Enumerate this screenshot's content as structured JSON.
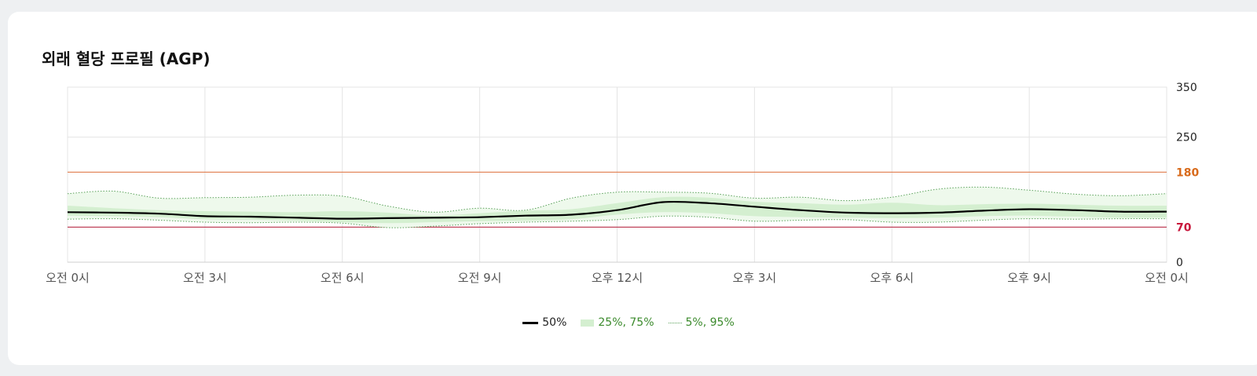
{
  "chart_data": {
    "type": "area",
    "title": "외래 혈당 프로필 (AGP)",
    "x_tick_labels": [
      "오전 0시",
      "오전 3시",
      "오전 6시",
      "오전 9시",
      "오후 12시",
      "오후 3시",
      "오후 6시",
      "오후 9시",
      "오전 0시"
    ],
    "x_range": [
      0,
      24
    ],
    "y_ticks": [
      0,
      70,
      180,
      250,
      350
    ],
    "y_range": [
      0,
      350
    ],
    "y_axis_position": "right",
    "grid": true,
    "legend_position": "bottom-center",
    "target_range": {
      "low": 70,
      "high": 180,
      "low_color": "#c0435a",
      "high_color": "#e07a4a",
      "low_label_color": "#c8173c",
      "high_label_color": "#d86a1a"
    },
    "x": [
      0,
      1,
      2,
      3,
      4,
      5,
      6,
      7,
      8,
      9,
      10,
      11,
      12,
      13,
      14,
      15,
      16,
      17,
      18,
      19,
      20,
      21,
      22,
      23,
      24
    ],
    "series": [
      {
        "name": "50%",
        "role": "median",
        "color": "#000000",
        "values": [
          100,
          99,
          97,
          92,
          91,
          89,
          87,
          88,
          89,
          90,
          93,
          95,
          104,
          120,
          118,
          111,
          104,
          99,
          98,
          99,
          103,
          106,
          104,
          101,
          101
        ]
      },
      {
        "name": "25%, 75%",
        "role": "iqr_band",
        "color": "#d4efd0",
        "lower": [
          93,
          92,
          90,
          86,
          85,
          83,
          80,
          78,
          80,
          82,
          83,
          86,
          95,
          100,
          98,
          92,
          90,
          89,
          88,
          89,
          92,
          93,
          91,
          89,
          89
        ],
        "upper": [
          113,
          108,
          104,
          102,
          101,
          100,
          102,
          99,
          93,
          98,
          103,
          106,
          118,
          130,
          129,
          121,
          118,
          115,
          119,
          114,
          116,
          117,
          115,
          113,
          113
        ]
      },
      {
        "name": "5%, 95%",
        "role": "outer_band",
        "color": "#5aa15a",
        "lower": [
          86,
          87,
          84,
          80,
          79,
          80,
          78,
          69,
          72,
          77,
          80,
          82,
          85,
          92,
          90,
          82,
          84,
          85,
          80,
          80,
          84,
          87,
          86,
          87,
          87
        ],
        "upper": [
          137,
          142,
          128,
          129,
          130,
          134,
          132,
          112,
          100,
          108,
          104,
          128,
          140,
          140,
          138,
          128,
          130,
          123,
          130,
          146,
          150,
          144,
          136,
          133,
          137
        ]
      }
    ]
  }
}
